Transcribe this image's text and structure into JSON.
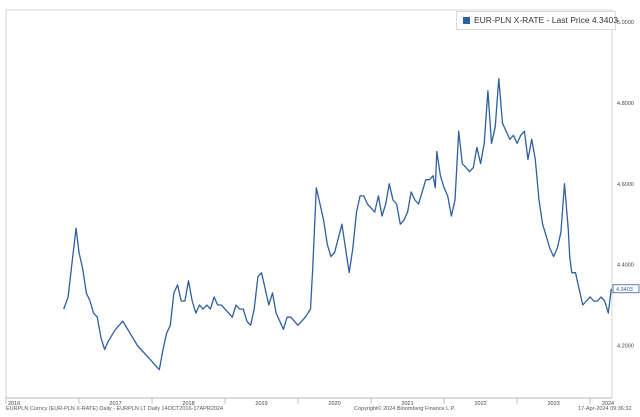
{
  "legend": {
    "label": "EUR-PLN X-RATE - Last Price 4.3403",
    "color": "#2f5f9e"
  },
  "footer": {
    "left": "EURPLN Curncy (EUR-PLN X-RATE) Daily - EURPLN LT  Daily 14OCT2016-17APR2024",
    "center": "Copyright© 2024 Bloomberg Finance L.P.",
    "right": "17-Apr-2024 09:36:32"
  },
  "chart_data": {
    "type": "line",
    "series": [
      {
        "name": "EUR-PLN X-RATE",
        "color": "#2f5f9e",
        "x": [
          2016.79,
          2016.85,
          2016.92,
          2016.96,
          2017.0,
          2017.05,
          2017.1,
          2017.15,
          2017.2,
          2017.25,
          2017.3,
          2017.35,
          2017.4,
          2017.5,
          2017.6,
          2017.7,
          2017.8,
          2017.9,
          2017.95,
          2018.0,
          2018.05,
          2018.1,
          2018.15,
          2018.2,
          2018.25,
          2018.3,
          2018.35,
          2018.4,
          2018.45,
          2018.5,
          2018.55,
          2018.6,
          2018.65,
          2018.7,
          2018.75,
          2018.8,
          2018.85,
          2018.9,
          2018.95,
          2019.0,
          2019.05,
          2019.1,
          2019.15,
          2019.2,
          2019.25,
          2019.3,
          2019.35,
          2019.4,
          2019.45,
          2019.5,
          2019.55,
          2019.6,
          2019.65,
          2019.7,
          2019.75,
          2019.8,
          2019.85,
          2019.9,
          2019.95,
          2020.0,
          2020.1,
          2020.17,
          2020.2,
          2020.25,
          2020.3,
          2020.35,
          2020.4,
          2020.45,
          2020.5,
          2020.6,
          2020.7,
          2020.75,
          2020.8,
          2020.85,
          2020.9,
          2020.95,
          2021.0,
          2021.05,
          2021.1,
          2021.15,
          2021.2,
          2021.25,
          2021.3,
          2021.35,
          2021.4,
          2021.45,
          2021.5,
          2021.55,
          2021.6,
          2021.65,
          2021.7,
          2021.75,
          2021.8,
          2021.85,
          2021.88,
          2021.9,
          2021.95,
          2022.0,
          2022.05,
          2022.1,
          2022.15,
          2022.2,
          2022.25,
          2022.3,
          2022.35,
          2022.4,
          2022.45,
          2022.5,
          2022.55,
          2022.6,
          2022.65,
          2022.7,
          2022.75,
          2022.8,
          2022.85,
          2022.9,
          2022.95,
          2023.0,
          2023.05,
          2023.1,
          2023.15,
          2023.2,
          2023.25,
          2023.3,
          2023.35,
          2023.4,
          2023.45,
          2023.5,
          2023.55,
          2023.6,
          2023.65,
          2023.7,
          2023.72,
          2023.75,
          2023.8,
          2023.85,
          2023.9,
          2023.95,
          2024.0,
          2024.05,
          2024.1,
          2024.15,
          2024.2,
          2024.25,
          2024.29
        ],
        "values": [
          4.29,
          4.32,
          4.43,
          4.49,
          4.43,
          4.39,
          4.33,
          4.31,
          4.28,
          4.27,
          4.22,
          4.19,
          4.21,
          4.24,
          4.26,
          4.23,
          4.2,
          4.18,
          4.17,
          4.16,
          4.15,
          4.14,
          4.19,
          4.23,
          4.25,
          4.33,
          4.35,
          4.31,
          4.31,
          4.36,
          4.31,
          4.28,
          4.3,
          4.29,
          4.3,
          4.29,
          4.32,
          4.3,
          4.3,
          4.29,
          4.28,
          4.27,
          4.3,
          4.29,
          4.29,
          4.26,
          4.25,
          4.29,
          4.37,
          4.38,
          4.34,
          4.3,
          4.33,
          4.28,
          4.26,
          4.24,
          4.27,
          4.27,
          4.26,
          4.25,
          4.27,
          4.29,
          4.39,
          4.59,
          4.55,
          4.51,
          4.45,
          4.42,
          4.43,
          4.5,
          4.38,
          4.44,
          4.53,
          4.57,
          4.57,
          4.55,
          4.54,
          4.53,
          4.57,
          4.52,
          4.55,
          4.6,
          4.56,
          4.55,
          4.5,
          4.51,
          4.53,
          4.58,
          4.56,
          4.55,
          4.58,
          4.61,
          4.61,
          4.62,
          4.59,
          4.68,
          4.62,
          4.59,
          4.57,
          4.52,
          4.56,
          4.73,
          4.65,
          4.64,
          4.63,
          4.64,
          4.69,
          4.65,
          4.7,
          4.83,
          4.7,
          4.74,
          4.86,
          4.75,
          4.73,
          4.71,
          4.72,
          4.7,
          4.72,
          4.73,
          4.66,
          4.71,
          4.66,
          4.56,
          4.5,
          4.47,
          4.44,
          4.42,
          4.44,
          4.48,
          4.6,
          4.49,
          4.42,
          4.38,
          4.38,
          4.34,
          4.3,
          4.31,
          4.32,
          4.31,
          4.31,
          4.32,
          4.31,
          4.28,
          4.3403
        ]
      }
    ],
    "x_ticks": [
      2016,
      2017,
      2018,
      2019,
      2020,
      2021,
      2022,
      2023,
      2024
    ],
    "x_tick_labels": [
      "2016",
      "2017",
      "2018",
      "2019",
      "2020",
      "2021",
      "2022",
      "2023",
      "2024"
    ],
    "y_ticks": [
      4.2,
      4.4,
      4.6,
      4.8,
      5.0
    ],
    "y_tick_labels": [
      "4.2000",
      "4.4000",
      "4.6000",
      "4.8000",
      "5.0000"
    ],
    "xlim": [
      2016.0,
      2024.3
    ],
    "ylim": [
      4.07,
      5.03
    ],
    "last_price_label": "4.3403",
    "grid": true,
    "legend_position": "top-right"
  }
}
